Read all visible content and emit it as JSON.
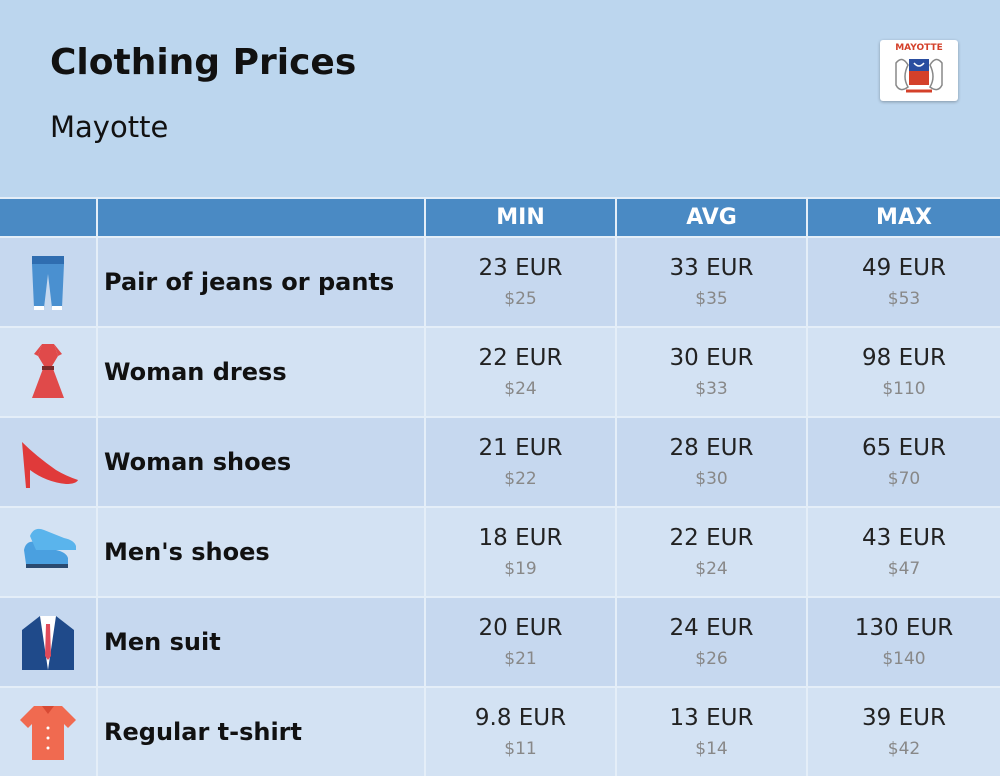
{
  "header": {
    "title": "Clothing Prices",
    "subtitle": "Mayotte",
    "flag_label": "MAYOTTE"
  },
  "table": {
    "columns": [
      "MIN",
      "AVG",
      "MAX"
    ],
    "rows": [
      {
        "label": "Pair of jeans or pants",
        "cells": [
          [
            "23 EUR",
            "$25"
          ],
          [
            "33 EUR",
            "$35"
          ],
          [
            "49 EUR",
            "$53"
          ]
        ]
      },
      {
        "label": "Woman dress",
        "cells": [
          [
            "22 EUR",
            "$24"
          ],
          [
            "30 EUR",
            "$33"
          ],
          [
            "98 EUR",
            "$110"
          ]
        ]
      },
      {
        "label": "Woman shoes",
        "cells": [
          [
            "21 EUR",
            "$22"
          ],
          [
            "28 EUR",
            "$30"
          ],
          [
            "65 EUR",
            "$70"
          ]
        ]
      },
      {
        "label": "Men's shoes",
        "cells": [
          [
            "18 EUR",
            "$19"
          ],
          [
            "22 EUR",
            "$24"
          ],
          [
            "43 EUR",
            "$47"
          ]
        ]
      },
      {
        "label": "Men suit",
        "cells": [
          [
            "20 EUR",
            "$21"
          ],
          [
            "24 EUR",
            "$26"
          ],
          [
            "130 EUR",
            "$140"
          ]
        ]
      },
      {
        "label": "Regular t-shirt",
        "cells": [
          [
            "9.8 EUR",
            "$11"
          ],
          [
            "13 EUR",
            "$14"
          ],
          [
            "39 EUR",
            "$42"
          ]
        ]
      }
    ]
  }
}
